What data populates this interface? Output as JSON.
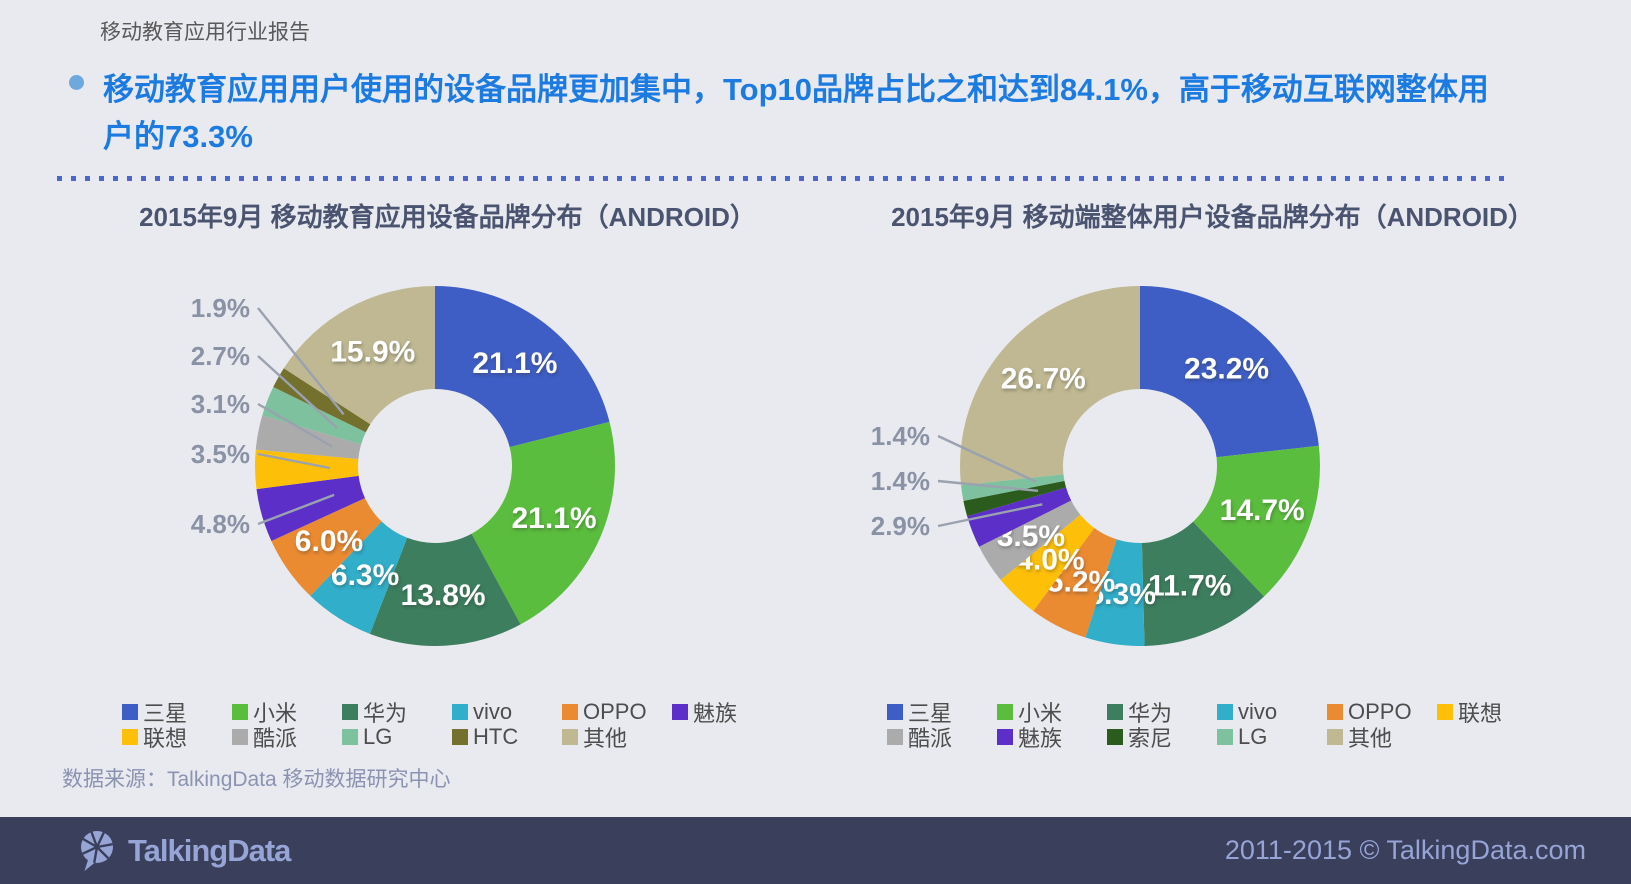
{
  "page": {
    "report_label": "移动教育应用行业报告",
    "headline": "移动教育应用用户使用的设备品牌更加集中，Top10品牌占比之和达到84.1%，高于移动互联网整体用户的73.3%",
    "source_note": "数据来源：TalkingData 移动数据研究中心",
    "footer": {
      "brand": "TalkingData",
      "copyright": "2011-2015 © TalkingData.com"
    }
  },
  "colors": {
    "bg": "#E9EAEF",
    "headline_blue": "#1B7BE1",
    "bullet_blue": "#6FA8DC",
    "divider_blue": "#4A67C9",
    "title_color": "#4A5470",
    "report_label_color": "#595959",
    "legend_text": "#4D4D4D",
    "outside_label": "#8A92A6",
    "leader_line": "#9AA1AF",
    "source_color": "#8A93B2",
    "footer_bg": "#3A3F5B",
    "footer_text": "#96A4D6"
  },
  "chart_data": [
    {
      "type": "pie",
      "subtype": "donut",
      "title": "2015年9月 移动教育应用设备品牌分布（ANDROID）",
      "unit": "%",
      "start_angle": "top",
      "direction": "clockwise",
      "legend_position": "bottom",
      "segments": [
        {
          "id": "samsung",
          "label": "三星",
          "value": 21.1,
          "color": "#3E5EC6",
          "label_mode": "inside"
        },
        {
          "id": "xiaomi",
          "label": "小米",
          "value": 21.1,
          "color": "#5BBD3D",
          "label_mode": "inside"
        },
        {
          "id": "huawei",
          "label": "华为",
          "value": 13.8,
          "color": "#3C7E5E",
          "label_mode": "inside"
        },
        {
          "id": "vivo",
          "label": "vivo",
          "value": 6.3,
          "color": "#31AEC9",
          "label_mode": "inside"
        },
        {
          "id": "oppo",
          "label": "OPPO",
          "value": 6.0,
          "color": "#EA8A31",
          "label_mode": "inside"
        },
        {
          "id": "meizu",
          "label": "魅族",
          "value": 4.8,
          "color": "#5C2FC9",
          "label_mode": "outside"
        },
        {
          "id": "lenovo",
          "label": "联想",
          "value": 3.5,
          "color": "#FDBF07",
          "label_mode": "outside"
        },
        {
          "id": "coolpad",
          "label": "酷派",
          "value": 3.1,
          "color": "#ABABAB",
          "label_mode": "outside"
        },
        {
          "id": "lg",
          "label": "LG",
          "value": 2.7,
          "color": "#7DC19E",
          "label_mode": "outside"
        },
        {
          "id": "htc",
          "label": "HTC",
          "value": 1.9,
          "color": "#74702E",
          "label_mode": "outside"
        },
        {
          "id": "other",
          "label": "其他",
          "value": 15.9,
          "color": "#BFB892",
          "label_mode": "inside"
        }
      ]
    },
    {
      "type": "pie",
      "subtype": "donut",
      "title": "2015年9月 移动端整体用户设备品牌分布（ANDROID）",
      "unit": "%",
      "start_angle": "top",
      "direction": "clockwise",
      "legend_position": "bottom",
      "segments": [
        {
          "id": "samsung",
          "label": "三星",
          "value": 23.2,
          "color": "#3E5EC6",
          "label_mode": "inside"
        },
        {
          "id": "xiaomi",
          "label": "小米",
          "value": 14.7,
          "color": "#5BBD3D",
          "label_mode": "inside"
        },
        {
          "id": "huawei",
          "label": "华为",
          "value": 11.7,
          "color": "#3C7E5E",
          "label_mode": "inside"
        },
        {
          "id": "vivo",
          "label": "vivo",
          "value": 5.3,
          "color": "#31AEC9",
          "label_mode": "inside"
        },
        {
          "id": "oppo",
          "label": "OPPO",
          "value": 5.2,
          "color": "#EA8A31",
          "label_mode": "inside"
        },
        {
          "id": "lenovo",
          "label": "联想",
          "value": 4.0,
          "color": "#FDBF07",
          "label_mode": "inside"
        },
        {
          "id": "coolpad",
          "label": "酷派",
          "value": 3.5,
          "color": "#ABABAB",
          "label_mode": "inside"
        },
        {
          "id": "meizu",
          "label": "魅族",
          "value": 2.9,
          "color": "#5C2FC9",
          "label_mode": "outside"
        },
        {
          "id": "sony",
          "label": "索尼",
          "value": 1.4,
          "color": "#2C5B1E",
          "label_mode": "outside"
        },
        {
          "id": "lg",
          "label": "LG",
          "value": 1.4,
          "color": "#7DC19E",
          "label_mode": "outside"
        },
        {
          "id": "other",
          "label": "其他",
          "value": 26.7,
          "color": "#BFB892",
          "label_mode": "inside"
        }
      ]
    }
  ]
}
